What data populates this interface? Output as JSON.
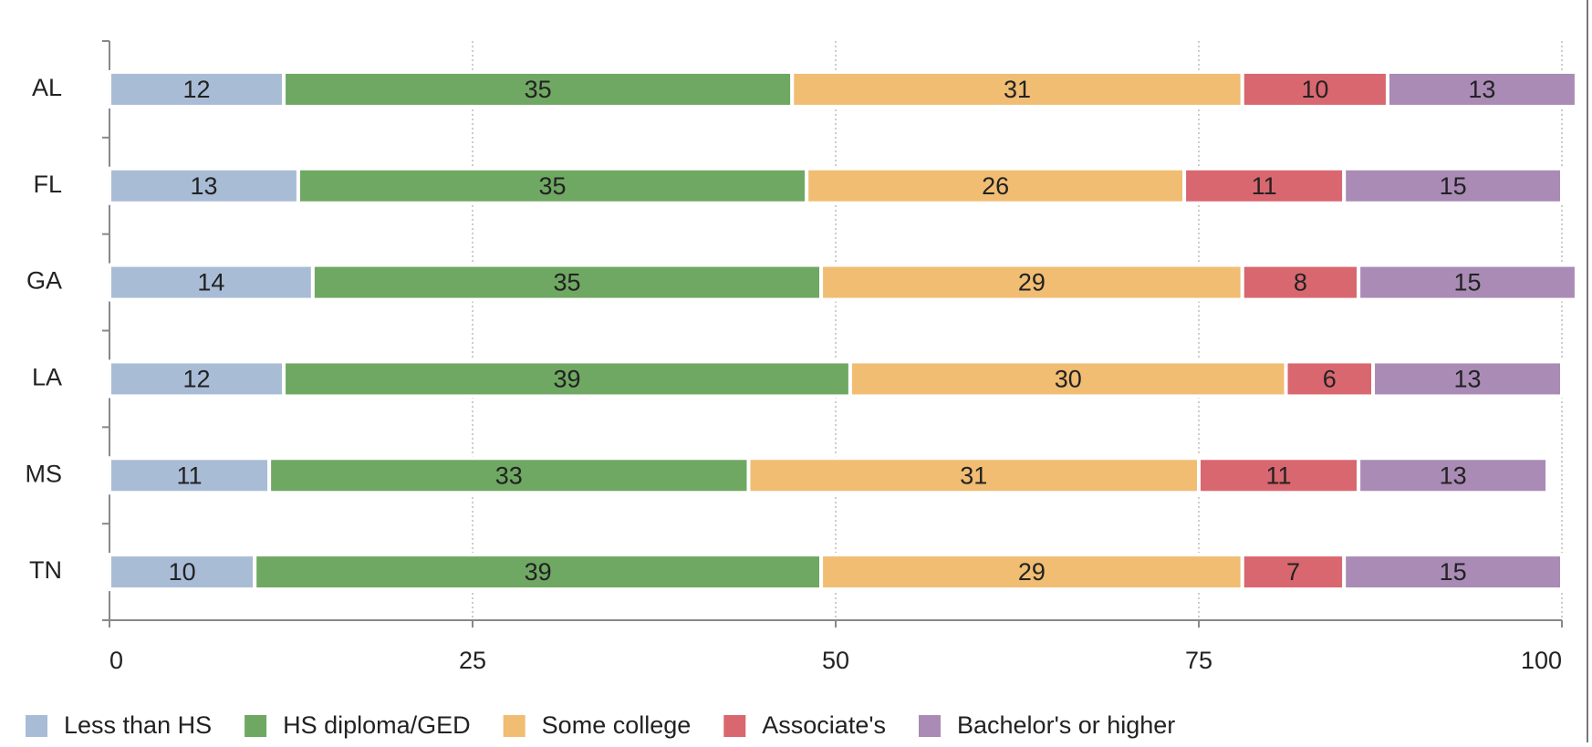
{
  "chart_data": {
    "type": "stacked-bar",
    "orientation": "horizontal",
    "categories": [
      "AL",
      "FL",
      "GA",
      "LA",
      "MS",
      "TN"
    ],
    "series": [
      {
        "name": "Less than HS",
        "color": "#a9bcd6",
        "values": [
          12,
          13,
          14,
          12,
          11,
          10
        ]
      },
      {
        "name": "HS diploma/GED",
        "color": "#6fa862",
        "values": [
          35,
          35,
          35,
          39,
          33,
          39
        ]
      },
      {
        "name": "Some college",
        "color": "#f0bd73",
        "values": [
          31,
          26,
          29,
          30,
          31,
          29
        ]
      },
      {
        "name": "Associate's",
        "color": "#d9676f",
        "values": [
          10,
          11,
          8,
          6,
          11,
          7
        ]
      },
      {
        "name": "Bachelor's or higher",
        "color": "#a98bb5",
        "values": [
          13,
          15,
          15,
          13,
          13,
          15
        ]
      }
    ],
    "xlim": [
      0,
      100
    ],
    "xticks": [
      0,
      25,
      50,
      75,
      100
    ],
    "grid": true,
    "legend": "bottom"
  }
}
